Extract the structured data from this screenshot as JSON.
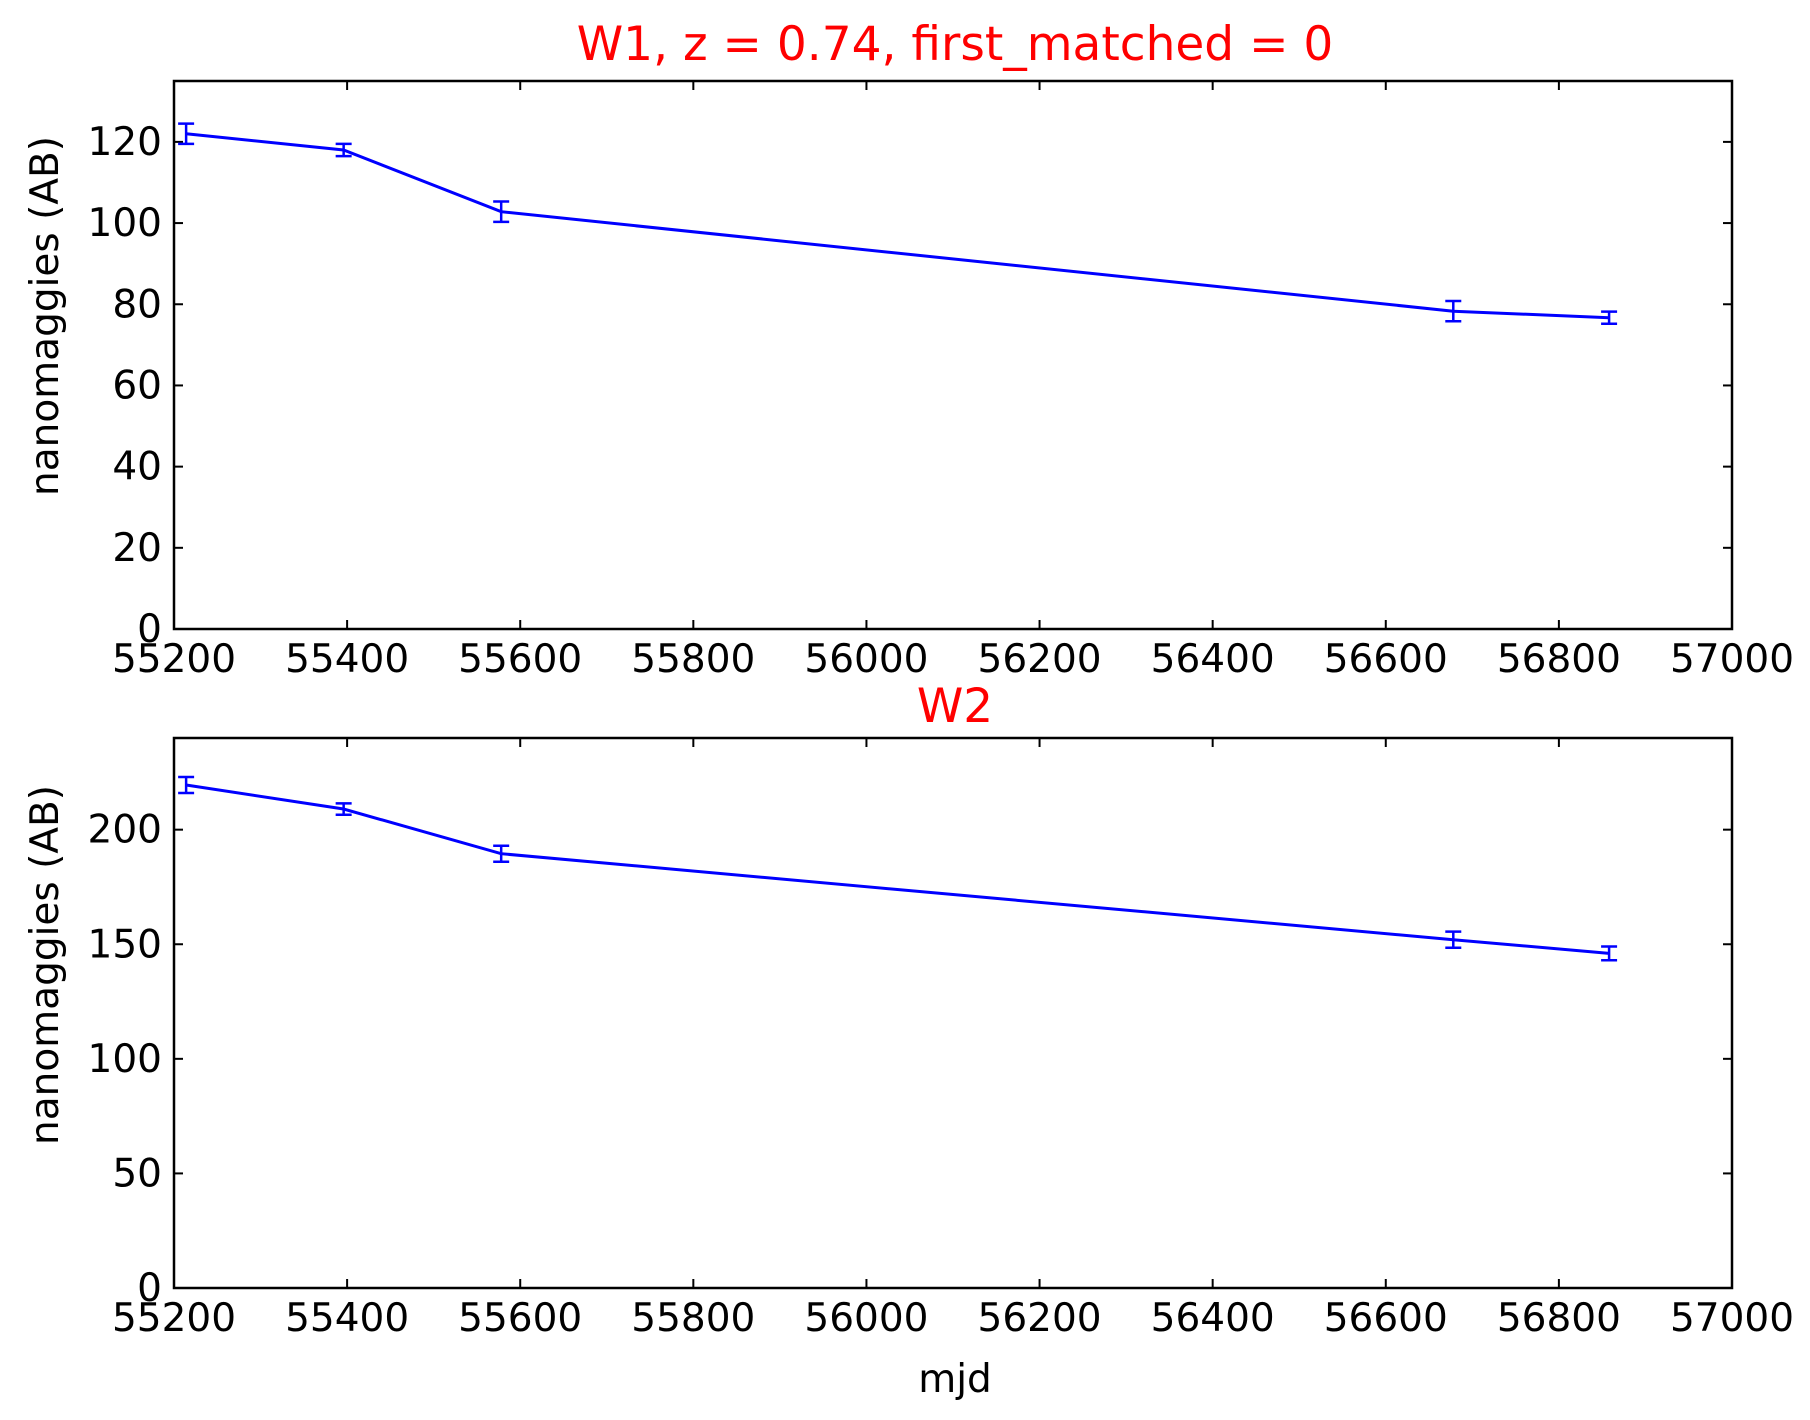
{
  "colors": {
    "title": "#ff0000",
    "series": "#0000ff",
    "axes": "#000000",
    "background": "#ffffff"
  },
  "chart_data": [
    {
      "type": "line",
      "title": "W1, z = 0.74, first_matched = 0",
      "xlabel": "",
      "ylabel": "nanomaggies (AB)",
      "xlim": [
        55200,
        57000
      ],
      "ylim": [
        0,
        135
      ],
      "xticks": [
        55200,
        55400,
        55600,
        55800,
        56000,
        56200,
        56400,
        56600,
        56800,
        57000
      ],
      "yticks": [
        0,
        20,
        40,
        60,
        80,
        100,
        120
      ],
      "grid": false,
      "series": [
        {
          "x": [
            55214,
            55396,
            55578,
            56678,
            56858
          ],
          "y": [
            122,
            118,
            102.8,
            78.3,
            76.7
          ],
          "yerr": [
            2.5,
            1.5,
            2.5,
            2.5,
            1.5
          ]
        }
      ]
    },
    {
      "type": "line",
      "title": "W2",
      "xlabel": "mjd",
      "ylabel": "nanomaggies (AB)",
      "xlim": [
        55200,
        57000
      ],
      "ylim": [
        0,
        240
      ],
      "xticks": [
        55200,
        55400,
        55600,
        55800,
        56000,
        56200,
        56400,
        56600,
        56800,
        57000
      ],
      "yticks": [
        0,
        50,
        100,
        150,
        200
      ],
      "grid": false,
      "series": [
        {
          "x": [
            55214,
            55396,
            55578,
            56678,
            56858
          ],
          "y": [
            219.5,
            209,
            189.5,
            152,
            146
          ],
          "yerr": [
            3.5,
            2.5,
            3.5,
            3.5,
            3
          ]
        }
      ]
    }
  ]
}
